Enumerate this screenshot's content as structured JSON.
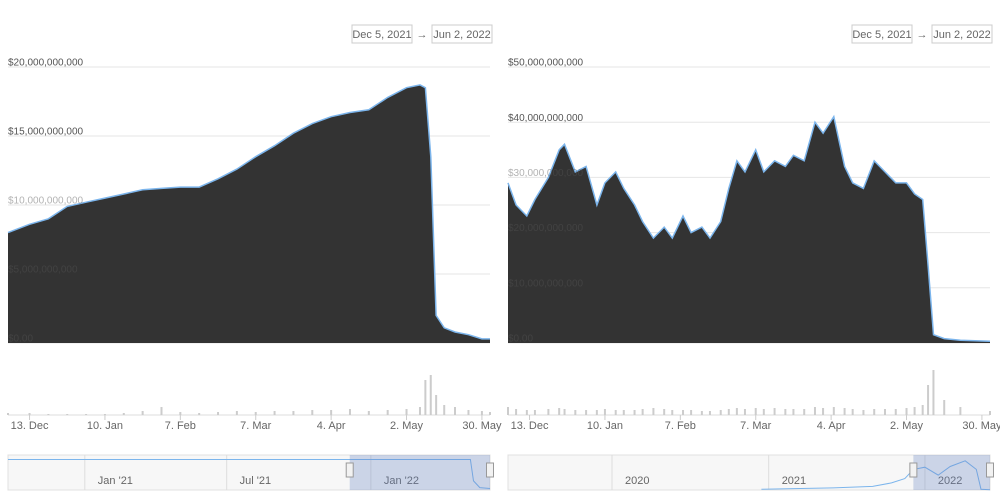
{
  "chart_data": [
    {
      "type": "area",
      "date_range": [
        "Dec 5, 2021",
        "Jun 2, 2022"
      ],
      "range_separator": "→",
      "fill": "#333333",
      "line_color": "#7cb5ec",
      "grid": true,
      "xlim": [
        "2021-12-05",
        "2022-06-02"
      ],
      "x": [
        "2021-12-05",
        "2021-12-13",
        "2021-12-20",
        "2021-12-27",
        "2022-01-03",
        "2022-01-10",
        "2022-01-17",
        "2022-01-24",
        "2022-01-31",
        "2022-02-07",
        "2022-02-14",
        "2022-02-21",
        "2022-02-28",
        "2022-03-07",
        "2022-03-14",
        "2022-03-21",
        "2022-03-28",
        "2022-04-04",
        "2022-04-11",
        "2022-04-18",
        "2022-04-25",
        "2022-05-02",
        "2022-05-07",
        "2022-05-09",
        "2022-05-11",
        "2022-05-13",
        "2022-05-16",
        "2022-05-20",
        "2022-05-25",
        "2022-05-30",
        "2022-06-02"
      ],
      "values": [
        8000000000,
        8600000000,
        9000000000,
        9900000000,
        10200000000,
        10500000000,
        10800000000,
        11100000000,
        11200000000,
        11300000000,
        11300000000,
        11900000000,
        12600000000,
        13500000000,
        14300000000,
        15200000000,
        15900000000,
        16400000000,
        16700000000,
        16900000000,
        17800000000,
        18500000000,
        18700000000,
        18500000000,
        13500000000,
        2000000000,
        1100000000,
        800000000,
        600000000,
        300000000,
        300000000
      ],
      "ylim": [
        0,
        20000000000
      ],
      "yticks": [
        {
          "value": 0,
          "label": "$0.00"
        },
        {
          "value": 5000000000,
          "label": "$5,000,000,000"
        },
        {
          "value": 10000000000,
          "label": "$10,000,000,000"
        },
        {
          "value": 15000000000,
          "label": "$15,000,000,000"
        },
        {
          "value": 20000000000,
          "label": "$20,000,000,000"
        }
      ],
      "xticks": [
        {
          "value": "2021-12-13",
          "label": "13. Dec"
        },
        {
          "value": "2022-01-10",
          "label": "10. Jan"
        },
        {
          "value": "2022-02-07",
          "label": "7. Feb"
        },
        {
          "value": "2022-03-07",
          "label": "7. Mar"
        },
        {
          "value": "2022-04-04",
          "label": "4. Apr"
        },
        {
          "value": "2022-05-02",
          "label": "2. May"
        },
        {
          "value": "2022-05-30",
          "label": "30. May"
        }
      ],
      "volume": {
        "color": "#cccccc",
        "ylim": [
          0,
          50
        ],
        "values": [
          2,
          2,
          1,
          1,
          1,
          1,
          2,
          4,
          8,
          3,
          2,
          3,
          4,
          3,
          4,
          4,
          5,
          5,
          6,
          4,
          5,
          6,
          8,
          35,
          40,
          20,
          10,
          8,
          5,
          4,
          3
        ]
      },
      "navigator": {
        "xlim": [
          "2020-09-25",
          "2022-06-02"
        ],
        "ylim": [
          0,
          1.05
        ],
        "x": [
          "2020-09-25",
          "2022-05-08",
          "2022-05-12",
          "2022-05-20",
          "2022-06-02"
        ],
        "values": [
          1,
          1,
          0.3,
          0.08,
          0.05
        ],
        "selection": [
          "2021-12-05",
          "2022-06-02"
        ],
        "xticks": [
          {
            "value": "2021-01-01",
            "label": "Jan '21"
          },
          {
            "value": "2021-07-01",
            "label": "Jul '21"
          },
          {
            "value": "2022-01-01",
            "label": "Jan '22"
          }
        ]
      }
    },
    {
      "type": "area",
      "date_range": [
        "Dec 5, 2021",
        "Jun 2, 2022"
      ],
      "range_separator": "→",
      "fill": "#333333",
      "line_color": "#7cb5ec",
      "grid": true,
      "xlim": [
        "2021-12-05",
        "2022-06-02"
      ],
      "x": [
        "2021-12-05",
        "2021-12-08",
        "2021-12-12",
        "2021-12-15",
        "2021-12-20",
        "2021-12-24",
        "2021-12-26",
        "2021-12-30",
        "2022-01-03",
        "2022-01-07",
        "2022-01-10",
        "2022-01-14",
        "2022-01-17",
        "2022-01-21",
        "2022-01-24",
        "2022-01-28",
        "2022-02-01",
        "2022-02-04",
        "2022-02-08",
        "2022-02-11",
        "2022-02-15",
        "2022-02-18",
        "2022-02-22",
        "2022-02-25",
        "2022-02-28",
        "2022-03-03",
        "2022-03-07",
        "2022-03-10",
        "2022-03-14",
        "2022-03-18",
        "2022-03-21",
        "2022-03-25",
        "2022-03-29",
        "2022-04-01",
        "2022-04-05",
        "2022-04-09",
        "2022-04-12",
        "2022-04-16",
        "2022-04-20",
        "2022-04-24",
        "2022-04-28",
        "2022-05-02",
        "2022-05-05",
        "2022-05-08",
        "2022-05-10",
        "2022-05-12",
        "2022-05-16",
        "2022-05-22",
        "2022-06-02"
      ],
      "values": [
        29000000000,
        25000000000,
        23000000000,
        26000000000,
        30000000000,
        35000000000,
        36000000000,
        31000000000,
        32000000000,
        25000000000,
        29000000000,
        31000000000,
        28000000000,
        25000000000,
        22000000000,
        19000000000,
        21000000000,
        19000000000,
        23000000000,
        20000000000,
        21000000000,
        19000000000,
        22000000000,
        28000000000,
        33000000000,
        31000000000,
        35000000000,
        31000000000,
        33000000000,
        32000000000,
        34000000000,
        33000000000,
        40000000000,
        38000000000,
        41000000000,
        32000000000,
        29000000000,
        28000000000,
        33000000000,
        31000000000,
        29000000000,
        29000000000,
        27000000000,
        26000000000,
        14000000000,
        1500000000,
        800000000,
        500000000,
        300000000
      ],
      "ylim": [
        0,
        50000000000
      ],
      "yticks": [
        {
          "value": 0,
          "label": "$0.00"
        },
        {
          "value": 10000000000,
          "label": "$10,000,000,000"
        },
        {
          "value": 20000000000,
          "label": "$20,000,000,000"
        },
        {
          "value": 30000000000,
          "label": "$30,000,000,000"
        },
        {
          "value": 40000000000,
          "label": "$40,000,000,000"
        },
        {
          "value": 50000000000,
          "label": "$50,000,000,000"
        }
      ],
      "xticks": [
        {
          "value": "2021-12-13",
          "label": "13. Dec"
        },
        {
          "value": "2022-01-10",
          "label": "10. Jan"
        },
        {
          "value": "2022-02-07",
          "label": "7. Feb"
        },
        {
          "value": "2022-03-07",
          "label": "7. Mar"
        },
        {
          "value": "2022-04-04",
          "label": "4. Apr"
        },
        {
          "value": "2022-05-02",
          "label": "2. May"
        },
        {
          "value": "2022-05-30",
          "label": "30. May"
        }
      ],
      "volume": {
        "color": "#cccccc",
        "ylim": [
          0,
          50
        ],
        "values": [
          8,
          6,
          5,
          5,
          6,
          7,
          6,
          5,
          5,
          5,
          6,
          5,
          5,
          5,
          6,
          7,
          6,
          5,
          5,
          5,
          4,
          4,
          5,
          6,
          7,
          6,
          7,
          6,
          7,
          6,
          6,
          6,
          8,
          7,
          8,
          7,
          6,
          5,
          6,
          6,
          6,
          7,
          8,
          10,
          30,
          45,
          15,
          8,
          4
        ]
      },
      "navigator": {
        "xlim": [
          "2019-05-03",
          "2022-06-02"
        ],
        "ylim": [
          0,
          45000000000
        ],
        "x": [
          "2020-12-15",
          "2021-03-01",
          "2021-06-01",
          "2021-09-01",
          "2021-10-15",
          "2021-11-15",
          "2021-12-05",
          "2022-01-01",
          "2022-02-01",
          "2022-03-01",
          "2022-04-05",
          "2022-05-01",
          "2022-05-12",
          "2022-06-02"
        ],
        "values": [
          1000000000,
          2000000000,
          3000000000,
          5000000000,
          10000000000,
          16000000000,
          29000000000,
          32000000000,
          21000000000,
          33000000000,
          41000000000,
          29000000000,
          1000000000,
          300000000
        ],
        "selection": [
          "2021-12-05",
          "2022-06-02"
        ],
        "xticks": [
          {
            "value": "2020-01-01",
            "label": "2020"
          },
          {
            "value": "2021-01-01",
            "label": "2021"
          },
          {
            "value": "2022-01-01",
            "label": "2022"
          }
        ]
      }
    }
  ]
}
